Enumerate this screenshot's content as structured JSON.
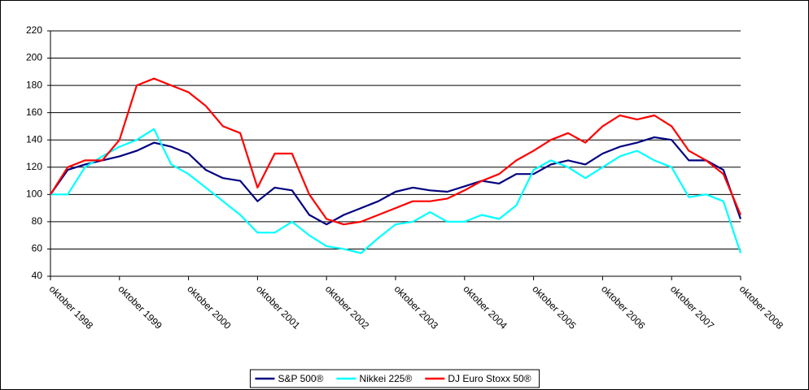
{
  "chart_data": {
    "type": "line",
    "x": [
      "1998-10",
      "1999-01",
      "1999-04",
      "1999-07",
      "1999-10",
      "2000-01",
      "2000-04",
      "2000-07",
      "2000-10",
      "2001-01",
      "2001-04",
      "2001-07",
      "2001-10",
      "2002-01",
      "2002-04",
      "2002-07",
      "2002-10",
      "2003-01",
      "2003-04",
      "2003-07",
      "2003-10",
      "2004-01",
      "2004-04",
      "2004-07",
      "2004-10",
      "2005-01",
      "2005-04",
      "2005-07",
      "2005-10",
      "2006-01",
      "2006-04",
      "2006-07",
      "2006-10",
      "2007-01",
      "2007-04",
      "2007-07",
      "2007-10",
      "2008-01",
      "2008-04",
      "2008-07",
      "2008-10"
    ],
    "series": [
      {
        "name": "S&P 500®",
        "color": "#000080",
        "values": [
          100,
          118,
          122,
          125,
          128,
          132,
          138,
          135,
          130,
          118,
          112,
          110,
          95,
          105,
          103,
          85,
          78,
          85,
          90,
          95,
          102,
          105,
          103,
          102,
          106,
          110,
          108,
          115,
          115,
          122,
          125,
          122,
          130,
          135,
          138,
          142,
          140,
          125,
          125,
          118,
          82
        ]
      },
      {
        "name": "Nikkei 225®",
        "color": "#00ffff",
        "values": [
          100,
          100,
          120,
          128,
          135,
          140,
          148,
          122,
          115,
          105,
          95,
          85,
          72,
          72,
          80,
          70,
          62,
          60,
          57,
          68,
          78,
          80,
          87,
          80,
          80,
          85,
          82,
          92,
          118,
          125,
          120,
          112,
          120,
          128,
          132,
          125,
          120,
          98,
          100,
          95,
          57
        ]
      },
      {
        "name": "DJ Euro Stoxx 50®",
        "color": "#ff0000",
        "values": [
          100,
          120,
          125,
          125,
          140,
          180,
          185,
          180,
          175,
          165,
          150,
          145,
          105,
          130,
          130,
          100,
          82,
          78,
          80,
          85,
          90,
          95,
          95,
          97,
          103,
          110,
          115,
          125,
          132,
          140,
          145,
          138,
          150,
          158,
          155,
          158,
          150,
          132,
          125,
          115,
          85
        ]
      }
    ],
    "xlim": [
      "1998-10",
      "2008-10"
    ],
    "xticks": [
      {
        "value": "1998-10",
        "label": "oktober 1998"
      },
      {
        "value": "1999-10",
        "label": "oktober 1999"
      },
      {
        "value": "2000-10",
        "label": "oktober 2000"
      },
      {
        "value": "2001-10",
        "label": "oktober 2001"
      },
      {
        "value": "2002-10",
        "label": "oktober 2002"
      },
      {
        "value": "2003-10",
        "label": "oktober 2003"
      },
      {
        "value": "2004-10",
        "label": "oktober 2004"
      },
      {
        "value": "2005-10",
        "label": "oktober 2005"
      },
      {
        "value": "2006-10",
        "label": "oktober 2006"
      },
      {
        "value": "2007-10",
        "label": "oktober 2007"
      },
      {
        "value": "2008-10",
        "label": "oktober 2008"
      }
    ],
    "ylim": [
      40,
      220
    ],
    "yticks": [
      40,
      60,
      80,
      100,
      120,
      140,
      160,
      180,
      200,
      220
    ],
    "grid": true,
    "legend": "bottom"
  }
}
